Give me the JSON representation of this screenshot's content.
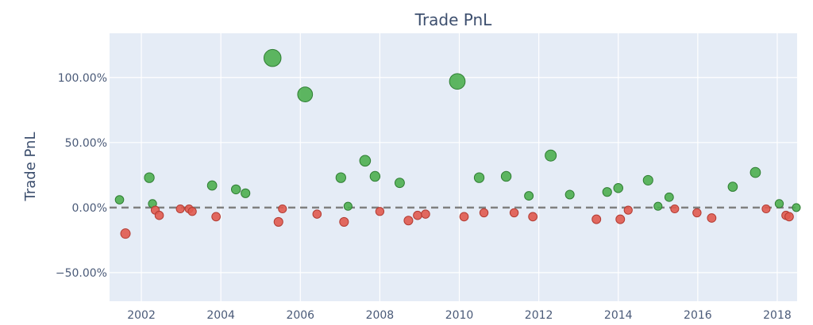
{
  "chart_data": {
    "type": "scatter",
    "title": "Trade PnL",
    "xlabel": "",
    "ylabel": "Trade PnL",
    "xlim": [
      2001.2,
      2018.5
    ],
    "ylim": [
      -0.72,
      1.34
    ],
    "y_format": "percent",
    "grid": true,
    "legend": "none",
    "background": "#e5ecf6",
    "colors": {
      "win": "#4caf50",
      "loss": "#e05a4f",
      "zero_line": "#808080"
    },
    "x_ticks": [
      2002,
      2004,
      2006,
      2008,
      2010,
      2012,
      2014,
      2016,
      2018
    ],
    "x_tick_labels": [
      "2002",
      "2004",
      "2006",
      "2008",
      "2010",
      "2012",
      "2014",
      "2016",
      "2018"
    ],
    "y_ticks": [
      -0.5,
      0,
      0.5,
      1.0
    ],
    "y_tick_labels": [
      "−50.00%",
      "0.00%",
      "50.00%",
      "100.00%"
    ],
    "points": [
      {
        "x": 2001.45,
        "y": 0.06
      },
      {
        "x": 2001.6,
        "y": -0.2
      },
      {
        "x": 2002.2,
        "y": 0.23
      },
      {
        "x": 2002.28,
        "y": 0.03
      },
      {
        "x": 2002.35,
        "y": -0.02
      },
      {
        "x": 2002.45,
        "y": -0.06
      },
      {
        "x": 2002.98,
        "y": -0.01
      },
      {
        "x": 2003.2,
        "y": -0.01
      },
      {
        "x": 2003.28,
        "y": -0.03
      },
      {
        "x": 2003.78,
        "y": 0.17
      },
      {
        "x": 2003.88,
        "y": -0.07
      },
      {
        "x": 2004.38,
        "y": 0.14
      },
      {
        "x": 2004.62,
        "y": 0.11
      },
      {
        "x": 2005.3,
        "y": 1.15
      },
      {
        "x": 2005.45,
        "y": -0.11
      },
      {
        "x": 2005.55,
        "y": -0.01
      },
      {
        "x": 2006.12,
        "y": 0.87
      },
      {
        "x": 2006.42,
        "y": -0.05
      },
      {
        "x": 2007.02,
        "y": 0.23
      },
      {
        "x": 2007.1,
        "y": -0.11
      },
      {
        "x": 2007.2,
        "y": 0.01
      },
      {
        "x": 2007.63,
        "y": 0.36
      },
      {
        "x": 2007.88,
        "y": 0.24
      },
      {
        "x": 2008.0,
        "y": -0.03
      },
      {
        "x": 2008.5,
        "y": 0.19
      },
      {
        "x": 2008.72,
        "y": -0.1
      },
      {
        "x": 2008.95,
        "y": -0.06
      },
      {
        "x": 2009.15,
        "y": -0.05
      },
      {
        "x": 2009.95,
        "y": 0.97
      },
      {
        "x": 2010.12,
        "y": -0.07
      },
      {
        "x": 2010.5,
        "y": 0.23
      },
      {
        "x": 2010.62,
        "y": -0.04
      },
      {
        "x": 2011.18,
        "y": 0.24
      },
      {
        "x": 2011.38,
        "y": -0.04
      },
      {
        "x": 2011.75,
        "y": 0.09
      },
      {
        "x": 2011.85,
        "y": -0.07
      },
      {
        "x": 2012.3,
        "y": 0.4
      },
      {
        "x": 2012.78,
        "y": 0.1
      },
      {
        "x": 2013.45,
        "y": -0.09
      },
      {
        "x": 2013.72,
        "y": 0.12
      },
      {
        "x": 2014.0,
        "y": 0.15
      },
      {
        "x": 2014.05,
        "y": -0.09
      },
      {
        "x": 2014.25,
        "y": -0.02
      },
      {
        "x": 2014.75,
        "y": 0.21
      },
      {
        "x": 2015.0,
        "y": 0.01
      },
      {
        "x": 2015.28,
        "y": 0.08
      },
      {
        "x": 2015.42,
        "y": -0.01
      },
      {
        "x": 2015.98,
        "y": -0.04
      },
      {
        "x": 2016.35,
        "y": -0.08
      },
      {
        "x": 2016.88,
        "y": 0.16
      },
      {
        "x": 2017.45,
        "y": 0.27
      },
      {
        "x": 2017.72,
        "y": -0.01
      },
      {
        "x": 2018.05,
        "y": 0.03
      },
      {
        "x": 2018.22,
        "y": -0.06
      },
      {
        "x": 2018.3,
        "y": -0.07
      },
      {
        "x": 2018.48,
        "y": 0.0
      }
    ]
  }
}
